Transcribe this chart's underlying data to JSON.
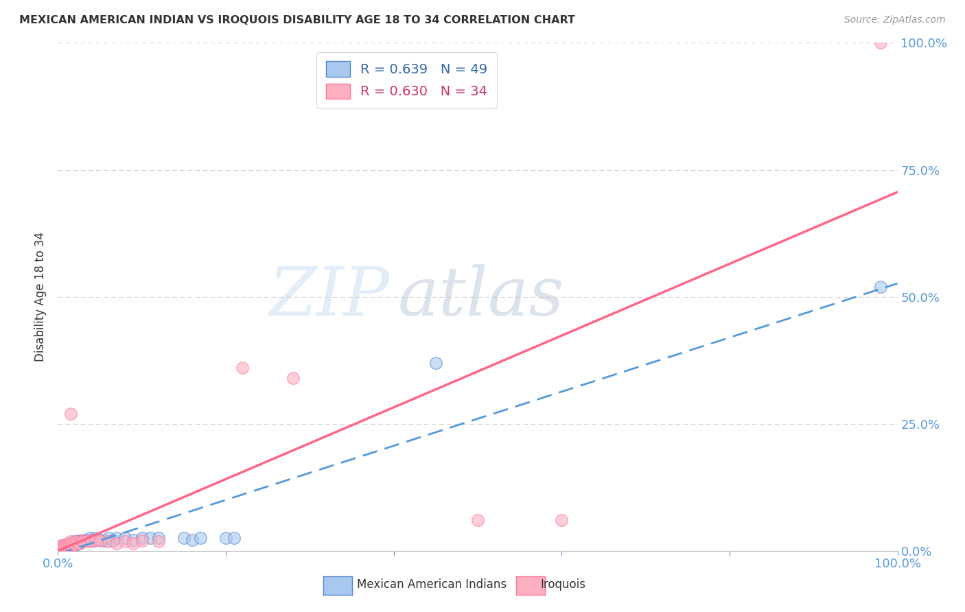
{
  "title": "MEXICAN AMERICAN INDIAN VS IROQUOIS DISABILITY AGE 18 TO 34 CORRELATION CHART",
  "source": "Source: ZipAtlas.com",
  "ylabel": "Disability Age 18 to 34",
  "xlim": [
    0,
    1.0
  ],
  "ylim": [
    0,
    1.0
  ],
  "ytick_labels": [
    "0.0%",
    "25.0%",
    "50.0%",
    "75.0%",
    "100.0%"
  ],
  "ytick_positions": [
    0.0,
    0.25,
    0.5,
    0.75,
    1.0
  ],
  "legend_blue_r": "R = 0.639",
  "legend_blue_n": "N = 49",
  "legend_pink_r": "R = 0.630",
  "legend_pink_n": "N = 34",
  "watermark_zip": "ZIP",
  "watermark_atlas": "atlas",
  "blue_color": "#A8C8F0",
  "pink_color": "#FFB0C0",
  "blue_edge_color": "#5588CC",
  "pink_edge_color": "#FF7799",
  "blue_line_color": "#5599DD",
  "pink_line_color": "#FF6688",
  "blue_scatter": [
    [
      0.002,
      0.002
    ],
    [
      0.003,
      0.005
    ],
    [
      0.004,
      0.003
    ],
    [
      0.005,
      0.008
    ],
    [
      0.005,
      0.01
    ],
    [
      0.006,
      0.006
    ],
    [
      0.007,
      0.004
    ],
    [
      0.008,
      0.01
    ],
    [
      0.009,
      0.008
    ],
    [
      0.01,
      0.012
    ],
    [
      0.011,
      0.01
    ],
    [
      0.012,
      0.015
    ],
    [
      0.013,
      0.008
    ],
    [
      0.014,
      0.012
    ],
    [
      0.015,
      0.01
    ],
    [
      0.016,
      0.008
    ],
    [
      0.017,
      0.015
    ],
    [
      0.018,
      0.012
    ],
    [
      0.019,
      0.018
    ],
    [
      0.02,
      0.01
    ],
    [
      0.022,
      0.015
    ],
    [
      0.024,
      0.018
    ],
    [
      0.025,
      0.02
    ],
    [
      0.026,
      0.015
    ],
    [
      0.028,
      0.02
    ],
    [
      0.03,
      0.018
    ],
    [
      0.032,
      0.022
    ],
    [
      0.035,
      0.02
    ],
    [
      0.038,
      0.025
    ],
    [
      0.04,
      0.022
    ],
    [
      0.042,
      0.02
    ],
    [
      0.045,
      0.025
    ],
    [
      0.05,
      0.022
    ],
    [
      0.055,
      0.02
    ],
    [
      0.06,
      0.025
    ],
    [
      0.065,
      0.02
    ],
    [
      0.07,
      0.025
    ],
    [
      0.08,
      0.025
    ],
    [
      0.09,
      0.022
    ],
    [
      0.1,
      0.025
    ],
    [
      0.11,
      0.025
    ],
    [
      0.12,
      0.025
    ],
    [
      0.15,
      0.025
    ],
    [
      0.16,
      0.022
    ],
    [
      0.17,
      0.025
    ],
    [
      0.2,
      0.025
    ],
    [
      0.21,
      0.025
    ],
    [
      0.45,
      0.37
    ],
    [
      0.98,
      0.52
    ]
  ],
  "pink_scatter": [
    [
      0.002,
      0.002
    ],
    [
      0.003,
      0.005
    ],
    [
      0.004,
      0.008
    ],
    [
      0.005,
      0.01
    ],
    [
      0.006,
      0.008
    ],
    [
      0.007,
      0.012
    ],
    [
      0.008,
      0.008
    ],
    [
      0.01,
      0.01
    ],
    [
      0.012,
      0.015
    ],
    [
      0.014,
      0.012
    ],
    [
      0.015,
      0.018
    ],
    [
      0.016,
      0.01
    ],
    [
      0.018,
      0.015
    ],
    [
      0.02,
      0.012
    ],
    [
      0.022,
      0.018
    ],
    [
      0.025,
      0.015
    ],
    [
      0.028,
      0.02
    ],
    [
      0.03,
      0.018
    ],
    [
      0.035,
      0.02
    ],
    [
      0.04,
      0.018
    ],
    [
      0.045,
      0.022
    ],
    [
      0.05,
      0.02
    ],
    [
      0.06,
      0.018
    ],
    [
      0.07,
      0.015
    ],
    [
      0.08,
      0.018
    ],
    [
      0.09,
      0.015
    ],
    [
      0.1,
      0.02
    ],
    [
      0.12,
      0.018
    ],
    [
      0.015,
      0.27
    ],
    [
      0.22,
      0.36
    ],
    [
      0.28,
      0.34
    ],
    [
      0.5,
      0.06
    ],
    [
      0.6,
      0.06
    ],
    [
      0.98,
      1.0
    ]
  ],
  "background_color": "#FFFFFF",
  "grid_color": "#CCCCCC"
}
